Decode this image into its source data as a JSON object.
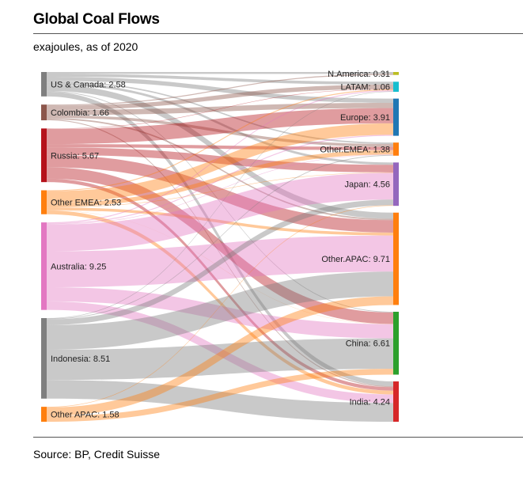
{
  "header": {
    "title": "Global Coal Flows",
    "subtitle": "exajoules, as of 2020"
  },
  "footer": {
    "source": "Source: BP, Credit Suisse"
  },
  "chart_data": {
    "type": "sankey",
    "title": "Global Coal Flows",
    "units": "exajoules",
    "sources": [
      {
        "name": "US & Canada",
        "label": "US & Canada: 2.58",
        "value": 2.58,
        "color": "#7f7f7f"
      },
      {
        "name": "Colombia",
        "label": "Colombia: 1.66",
        "value": 1.66,
        "color": "#8c564b"
      },
      {
        "name": "Russia",
        "label": "Russia: 5.67",
        "value": 5.67,
        "color": "#b5121b"
      },
      {
        "name": "Other EMEA",
        "label": "Other EMEA: 2.53",
        "value": 2.53,
        "color": "#ff7f0e"
      },
      {
        "name": "Australia",
        "label": "Australia: 9.25",
        "value": 9.25,
        "color": "#e377c2"
      },
      {
        "name": "Indonesia",
        "label": "Indonesia: 8.51",
        "value": 8.51,
        "color": "#7f7f7f"
      },
      {
        "name": "Other APAC",
        "label": "Other APAC: 1.58",
        "value": 1.58,
        "color": "#ff7f0e"
      }
    ],
    "targets": [
      {
        "name": "N.America",
        "label": "N.America: 0.31",
        "value": 0.31,
        "color": "#bcbd22"
      },
      {
        "name": "LATAM",
        "label": "LATAM: 1.06",
        "value": 1.06,
        "color": "#17becf"
      },
      {
        "name": "Europe",
        "label": "Europe: 3.91",
        "value": 3.91,
        "color": "#1f77b4"
      },
      {
        "name": "Other.EMEA",
        "label": "Other.EMEA: 1.38",
        "value": 1.38,
        "color": "#ff7f0e"
      },
      {
        "name": "Japan",
        "label": "Japan: 4.56",
        "value": 4.56,
        "color": "#9467bd"
      },
      {
        "name": "Other.APAC",
        "label": "Other.APAC: 9.71",
        "value": 9.71,
        "color": "#ff7f0e"
      },
      {
        "name": "China",
        "label": "China: 6.61",
        "value": 6.61,
        "color": "#2ca02c"
      },
      {
        "name": "India",
        "label": "India: 4.24",
        "value": 4.24,
        "color": "#d62728"
      }
    ],
    "flows": [
      {
        "source": "US & Canada",
        "target": "N.America",
        "value": 0.2
      },
      {
        "source": "US & Canada",
        "target": "LATAM",
        "value": 0.3
      },
      {
        "source": "US & Canada",
        "target": "Europe",
        "value": 0.45
      },
      {
        "source": "US & Canada",
        "target": "Other.EMEA",
        "value": 0.15
      },
      {
        "source": "US & Canada",
        "target": "Japan",
        "value": 0.25
      },
      {
        "source": "US & Canada",
        "target": "Other.APAC",
        "value": 0.65
      },
      {
        "source": "US & Canada",
        "target": "China",
        "value": 0.08
      },
      {
        "source": "US & Canada",
        "target": "India",
        "value": 0.5
      },
      {
        "source": "Colombia",
        "target": "N.America",
        "value": 0.11
      },
      {
        "source": "Colombia",
        "target": "LATAM",
        "value": 0.45
      },
      {
        "source": "Colombia",
        "target": "Europe",
        "value": 0.55
      },
      {
        "source": "Colombia",
        "target": "Other.EMEA",
        "value": 0.3
      },
      {
        "source": "Colombia",
        "target": "Other.APAC",
        "value": 0.15
      },
      {
        "source": "Colombia",
        "target": "India",
        "value": 0.1
      },
      {
        "source": "Russia",
        "target": "LATAM",
        "value": 0.05
      },
      {
        "source": "Russia",
        "target": "Europe",
        "value": 1.6
      },
      {
        "source": "Russia",
        "target": "Other.EMEA",
        "value": 0.35
      },
      {
        "source": "Russia",
        "target": "Japan",
        "value": 0.8
      },
      {
        "source": "Russia",
        "target": "Other.APAC",
        "value": 1.3
      },
      {
        "source": "Russia",
        "target": "China",
        "value": 1.2
      },
      {
        "source": "Russia",
        "target": "India",
        "value": 0.37
      },
      {
        "source": "Other EMEA",
        "target": "LATAM",
        "value": 0.1
      },
      {
        "source": "Other EMEA",
        "target": "Europe",
        "value": 1.21
      },
      {
        "source": "Other EMEA",
        "target": "Other.EMEA",
        "value": 0.45
      },
      {
        "source": "Other EMEA",
        "target": "Japan",
        "value": 0.05
      },
      {
        "source": "Other EMEA",
        "target": "Other.APAC",
        "value": 0.3
      },
      {
        "source": "Other EMEA",
        "target": "China",
        "value": 0.02
      },
      {
        "source": "Other EMEA",
        "target": "India",
        "value": 0.4
      },
      {
        "source": "Australia",
        "target": "LATAM",
        "value": 0.1
      },
      {
        "source": "Australia",
        "target": "Europe",
        "value": 0.1
      },
      {
        "source": "Australia",
        "target": "Other.EMEA",
        "value": 0.05
      },
      {
        "source": "Australia",
        "target": "Japan",
        "value": 2.8
      },
      {
        "source": "Australia",
        "target": "Other.APAC",
        "value": 3.8
      },
      {
        "source": "Australia",
        "target": "China",
        "value": 1.5
      },
      {
        "source": "Australia",
        "target": "India",
        "value": 0.9
      },
      {
        "source": "Indonesia",
        "target": "LATAM",
        "value": 0.06
      },
      {
        "source": "Indonesia",
        "target": "Other.EMEA",
        "value": 0.08
      },
      {
        "source": "Indonesia",
        "target": "Japan",
        "value": 0.6
      },
      {
        "source": "Indonesia",
        "target": "Other.APAC",
        "value": 2.6
      },
      {
        "source": "Indonesia",
        "target": "China",
        "value": 3.2
      },
      {
        "source": "Indonesia",
        "target": "India",
        "value": 1.97
      },
      {
        "source": "Other APAC",
        "target": "Japan",
        "value": 0.06
      },
      {
        "source": "Other APAC",
        "target": "Other.APAC",
        "value": 0.91
      },
      {
        "source": "Other APAC",
        "target": "China",
        "value": 0.61
      }
    ]
  }
}
